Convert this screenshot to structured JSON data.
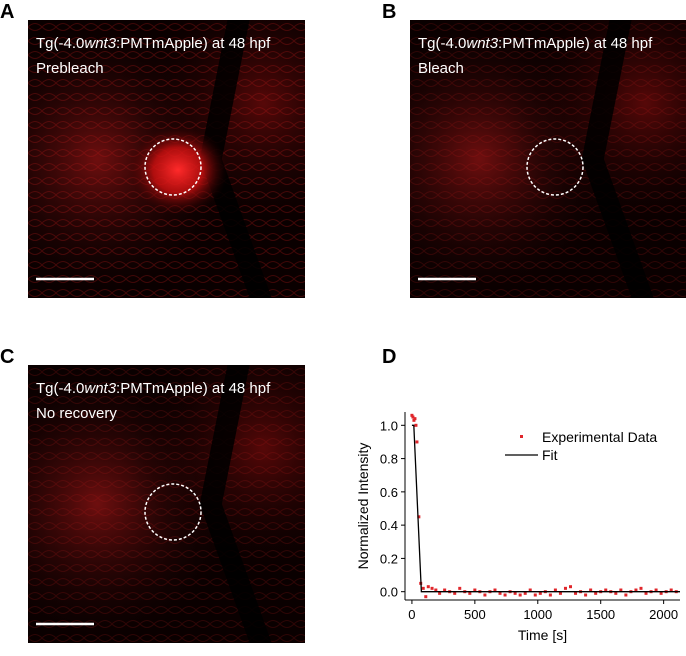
{
  "panels": [
    {
      "letter": "A",
      "title_prefix": "Tg(-4.0",
      "title_italic": "wnt3",
      "title_suffix": ":PMTmApple) at 48 hpf",
      "subtitle": "Prebleach"
    },
    {
      "letter": "B",
      "title_prefix": "Tg(-4.0",
      "title_italic": "wnt3",
      "title_suffix": ":PMTmApple) at 48 hpf",
      "subtitle": "Bleach"
    },
    {
      "letter": "C",
      "title_prefix": "Tg(-4.0",
      "title_italic": "wnt3",
      "title_suffix": ":PMTmApple) at 48 hpf",
      "subtitle": "No recovery"
    }
  ],
  "chart_data": {
    "type": "scatter",
    "letter": "D",
    "x_label": "Time [s]",
    "y_label": "Normalized Intensity",
    "xlim": [
      -55,
      2130
    ],
    "ylim": [
      -0.05,
      1.08
    ],
    "xticks": [
      0,
      500,
      1000,
      1500,
      2000
    ],
    "yticks": [
      {
        "value": 0,
        "label": "0.0"
      },
      {
        "value": 0.2,
        "label": "0.2"
      },
      {
        "value": 0.4,
        "label": "0.4"
      },
      {
        "value": 0.6,
        "label": "0.6"
      },
      {
        "value": 0.8,
        "label": "0.8"
      },
      {
        "value": 1.0,
        "label": "1.0"
      }
    ],
    "legend": "top-right",
    "series": [
      {
        "name": "Experimental Data",
        "color": "#e0262b",
        "kind": "points",
        "x": [
          0,
          8,
          16,
          24,
          32,
          40,
          55,
          70,
          90,
          110,
          130,
          160,
          190,
          220,
          260,
          300,
          340,
          380,
          420,
          460,
          500,
          540,
          580,
          620,
          660,
          700,
          740,
          780,
          820,
          860,
          900,
          940,
          980,
          1020,
          1060,
          1100,
          1140,
          1180,
          1220,
          1260,
          1300,
          1340,
          1380,
          1420,
          1460,
          1500,
          1540,
          1580,
          1620,
          1660,
          1700,
          1740,
          1780,
          1820,
          1860,
          1900,
          1940,
          1980,
          2020,
          2060,
          2100
        ],
        "values": [
          1.06,
          1.05,
          1.03,
          1.04,
          1.0,
          0.9,
          0.45,
          0.05,
          0.02,
          -0.03,
          0.03,
          0.02,
          0.01,
          -0.01,
          0.01,
          0.0,
          -0.01,
          0.02,
          0.0,
          -0.01,
          0.01,
          0.0,
          -0.02,
          0.0,
          0.01,
          -0.01,
          -0.02,
          0.0,
          -0.01,
          -0.02,
          -0.01,
          0.01,
          -0.02,
          -0.01,
          0.0,
          -0.02,
          0.01,
          -0.01,
          0.02,
          0.03,
          -0.01,
          0.0,
          -0.02,
          0.01,
          -0.01,
          0.0,
          0.01,
          0.0,
          -0.01,
          0.01,
          -0.02,
          0.0,
          0.01,
          0.02,
          -0.01,
          0.0,
          0.01,
          -0.01,
          0.0,
          0.01,
          0.0
        ]
      },
      {
        "name": "Fit",
        "color": "#000000",
        "kind": "line",
        "x": [
          0,
          15,
          75,
          2130
        ],
        "values": [
          1.0,
          1.0,
          0.0,
          0.0
        ]
      }
    ]
  }
}
